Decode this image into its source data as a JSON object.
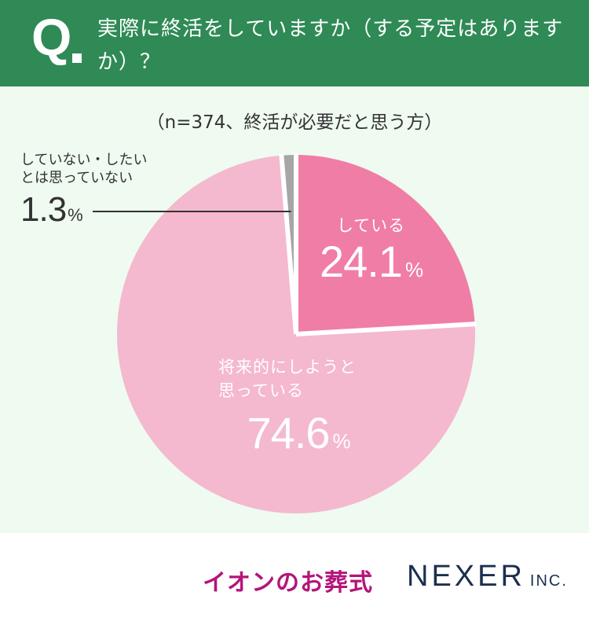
{
  "header": {
    "q_mark": "Q",
    "question": "実際に終活をしていますか（する予定はありますか）？"
  },
  "subtitle": "（n=374、終活が必要だと思う方）",
  "chart_data": {
    "type": "pie",
    "title": "",
    "n": 374,
    "start_angle_deg": 0,
    "direction": "clockwise",
    "categories": [
      "している",
      "将来的にしようと思っている",
      "していない・したいとは思っていない"
    ],
    "values": [
      24.1,
      74.6,
      1.3
    ],
    "value_labels": [
      "24.1",
      "74.6",
      "1.3"
    ],
    "unit": "%",
    "colors": [
      "#f07da6",
      "#f4b8cf",
      "#a6a6a6"
    ]
  },
  "labels": {
    "slice1_cat": "している",
    "slice1_val": "24.1",
    "slice2_cat_line1": "将来的にしようと",
    "slice2_cat_line2": "思っている",
    "slice2_val": "74.6",
    "slice3_cat_line1": "していない・したい",
    "slice3_cat_line2": "とは思っていない",
    "slice3_val": "1.3",
    "pct": "%"
  },
  "footer": {
    "brand_left": "イオンのお葬式",
    "brand_right": "NEXER",
    "brand_right_suffix": "INC."
  }
}
